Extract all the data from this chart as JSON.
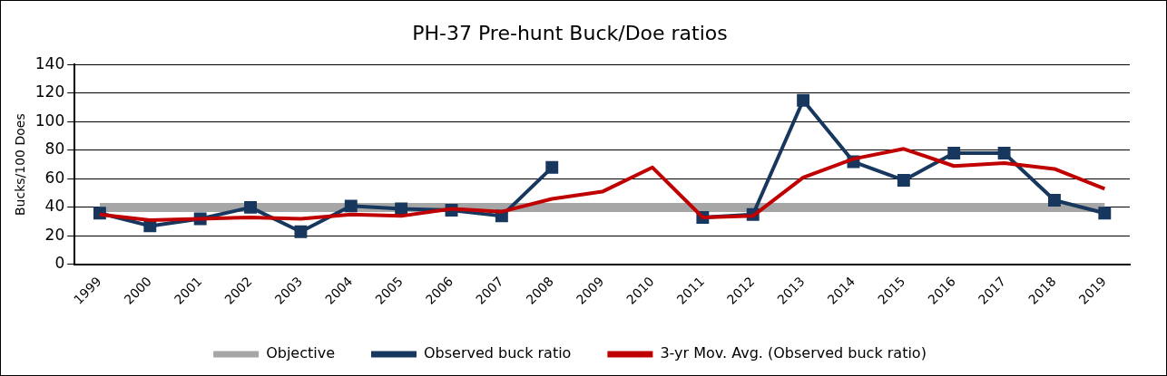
{
  "chart_data": {
    "type": "line",
    "title": "PH-37 Pre-hunt Buck/Doe ratios",
    "ylabel": "Bucks/100 Does",
    "categories": [
      "1999",
      "2000",
      "2001",
      "2002",
      "2003",
      "2004",
      "2005",
      "2006",
      "2007",
      "2008",
      "2009",
      "2010",
      "2011",
      "2012",
      "2013",
      "2014",
      "2015",
      "2016",
      "2017",
      "2018",
      "2019"
    ],
    "series": [
      {
        "name": "Objective",
        "color": "#a6a6a6",
        "marker": "none",
        "values": [
          40,
          40,
          40,
          40,
          40,
          40,
          40,
          40,
          40,
          40,
          40,
          40,
          40,
          40,
          40,
          40,
          40,
          40,
          40,
          40,
          40
        ]
      },
      {
        "name": "Observed buck ratio",
        "color": "#17375e",
        "marker": "square",
        "values": [
          36,
          27,
          32,
          40,
          23,
          41,
          39,
          38,
          34,
          68,
          null,
          null,
          33,
          35,
          115,
          72,
          59,
          78,
          78,
          45,
          36
        ]
      },
      {
        "name": "3-yr Mov. Avg. (Observed buck ratio)",
        "color": "#c00000",
        "marker": "none",
        "values": [
          35,
          31,
          32,
          33,
          32,
          35,
          34,
          39,
          37,
          46,
          51,
          68,
          33,
          34,
          61,
          74,
          81,
          69,
          71,
          67,
          53
        ]
      }
    ],
    "ylim": [
      0,
      140
    ],
    "yticks": [
      0,
      20,
      40,
      60,
      80,
      100,
      120,
      140
    ],
    "grid": "y",
    "legend": "bottom"
  }
}
